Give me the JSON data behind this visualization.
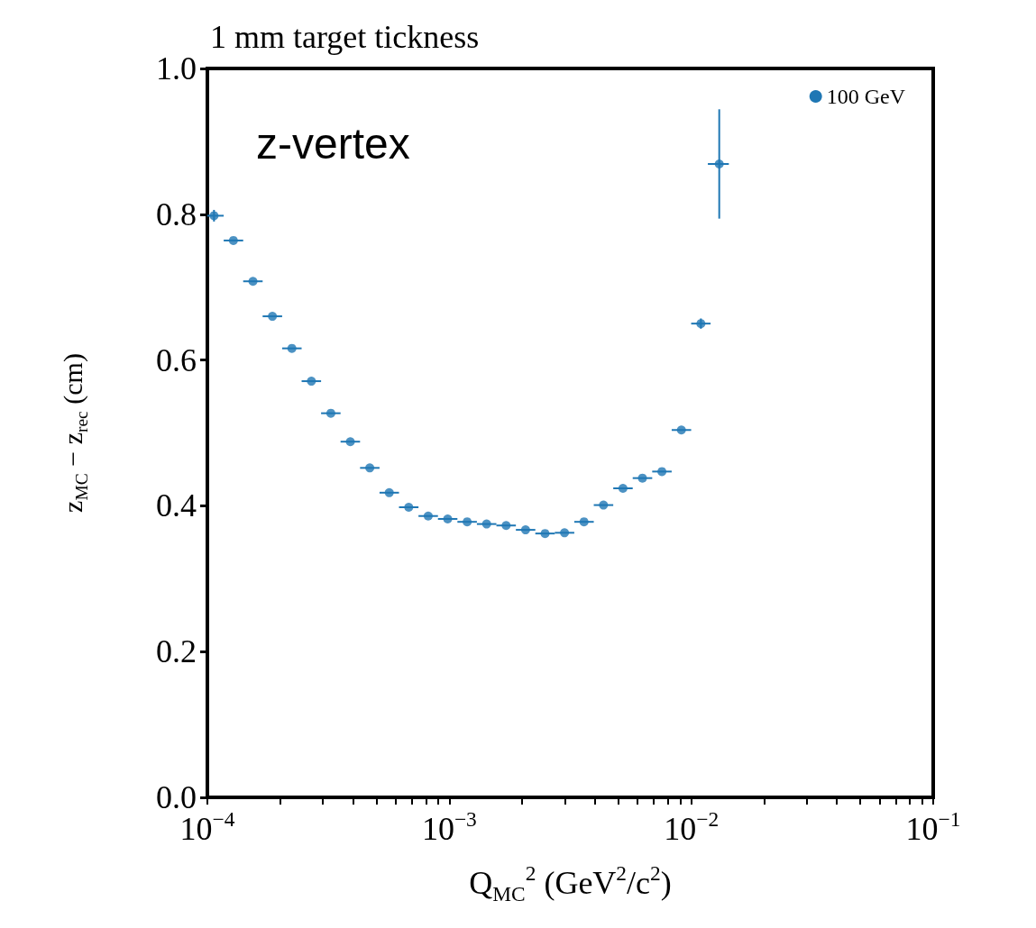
{
  "chart_data": {
    "type": "scatter",
    "title": "1 mm target tickness",
    "xlabel": "Q$_{MC}$$^{2}$ (GeV$^{2}$/c$^{2}$)",
    "ylabel": "z$_{MC}$ − z$_{rec}$ (cm)",
    "annotations": [
      "z-vertex"
    ],
    "log": "x",
    "xlim": [
      0.0001,
      0.1
    ],
    "ylim": [
      0,
      1
    ],
    "xticks": [
      {
        "value": 0.0001,
        "label": "10$^{−4}$"
      },
      {
        "value": 0.0002,
        "label": null
      },
      {
        "value": 0.0003,
        "label": null
      },
      {
        "value": 0.0004,
        "label": null
      },
      {
        "value": 0.0005,
        "label": null
      },
      {
        "value": 0.0006,
        "label": null
      },
      {
        "value": 0.0007,
        "label": null
      },
      {
        "value": 0.0008,
        "label": null
      },
      {
        "value": 0.0009,
        "label": null
      },
      {
        "value": 0.001,
        "label": "10$^{−3}$"
      },
      {
        "value": 0.002,
        "label": null
      },
      {
        "value": 0.003,
        "label": null
      },
      {
        "value": 0.004,
        "label": null
      },
      {
        "value": 0.005,
        "label": null
      },
      {
        "value": 0.006,
        "label": null
      },
      {
        "value": 0.007,
        "label": null
      },
      {
        "value": 0.008,
        "label": null
      },
      {
        "value": 0.009,
        "label": null
      },
      {
        "value": 0.01,
        "label": "10$^{−2}$"
      },
      {
        "value": 0.02,
        "label": null
      },
      {
        "value": 0.03,
        "label": null
      },
      {
        "value": 0.04,
        "label": null
      },
      {
        "value": 0.05,
        "label": null
      },
      {
        "value": 0.06,
        "label": null
      },
      {
        "value": 0.07,
        "label": null
      },
      {
        "value": 0.08,
        "label": null
      },
      {
        "value": 0.09,
        "label": null
      },
      {
        "value": 0.1,
        "label": "10$^{−1}$"
      }
    ],
    "yticks": [
      {
        "value": 0,
        "label": "0.0"
      },
      {
        "value": 0.2,
        "label": "0.2"
      },
      {
        "value": 0.4,
        "label": "0.4"
      },
      {
        "value": 0.6,
        "label": "0.6"
      },
      {
        "value": 0.8,
        "label": "0.8"
      },
      {
        "value": 1,
        "label": "1.0"
      }
    ],
    "grid": false,
    "legend": "top right",
    "marker": "circle",
    "series": [
      {
        "name": "100 GeV",
        "color": "#1f77b4",
        "x": [
          0.0001065,
          0.0001281,
          0.0001543,
          0.0001857,
          0.0002235,
          0.0002691,
          0.0003238,
          0.0003898,
          0.0004691,
          0.0005646,
          0.0006796,
          0.000818,
          0.0009845,
          0.001185,
          0.001426,
          0.001717,
          0.002066,
          0.002487,
          0.002993,
          0.003603,
          0.004337,
          0.00522,
          0.006283,
          0.007562,
          0.009103,
          0.01096,
          0.01305
        ],
        "values": [
          0.798,
          0.764,
          0.708,
          0.66,
          0.616,
          0.571,
          0.527,
          0.488,
          0.452,
          0.418,
          0.398,
          0.386,
          0.382,
          0.378,
          0.375,
          0.373,
          0.367,
          0.362,
          0.363,
          0.378,
          0.401,
          0.424,
          0.438,
          0.447,
          0.504,
          0.65,
          0.869
        ],
        "errors": [
          0.008,
          null,
          null,
          null,
          null,
          null,
          null,
          null,
          null,
          null,
          null,
          null,
          null,
          null,
          null,
          null,
          null,
          null,
          null,
          null,
          null,
          null,
          null,
          null,
          null,
          0.007,
          0.075
        ],
        "xerrors": [
          [
            0.0001,
            0.0001168
          ],
          [
            0.0001168,
            0.0001406
          ],
          [
            0.0001406,
            0.0001692
          ],
          [
            0.0001692,
            0.0002037
          ],
          [
            0.0002037,
            0.0002452
          ],
          [
            0.0002452,
            0.0002951
          ],
          [
            0.0002951,
            0.0003552
          ],
          [
            0.0003552,
            0.0004276
          ],
          [
            0.0004276,
            0.0005146
          ],
          [
            0.0005146,
            0.0006194
          ],
          [
            0.0006194,
            0.0007456
          ],
          [
            0.0007456,
            0.0008974
          ],
          [
            0.0008974,
            0.00108
          ],
          [
            0.00108,
            0.0013
          ],
          [
            0.0013,
            0.001565
          ],
          [
            0.001565,
            0.001884
          ],
          [
            0.001884,
            0.002267
          ],
          [
            0.002267,
            0.002729
          ],
          [
            0.002729,
            0.003285
          ],
          [
            0.003285,
            0.003954
          ],
          [
            0.003954,
            0.004759
          ],
          [
            0.004759,
            0.005728
          ],
          [
            0.005728,
            0.006895
          ],
          [
            0.006895,
            0.008299
          ],
          [
            0.008299,
            0.00999
          ],
          [
            0.00999,
            0.01202
          ],
          [
            0.01171,
            0.0143
          ]
        ]
      }
    ]
  }
}
